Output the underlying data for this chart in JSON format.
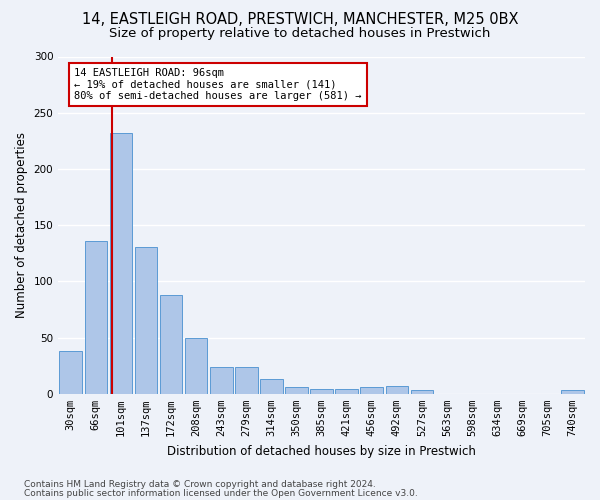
{
  "title_line1": "14, EASTLEIGH ROAD, PRESTWICH, MANCHESTER, M25 0BX",
  "title_line2": "Size of property relative to detached houses in Prestwich",
  "xlabel": "Distribution of detached houses by size in Prestwich",
  "ylabel": "Number of detached properties",
  "footer_line1": "Contains HM Land Registry data © Crown copyright and database right 2024.",
  "footer_line2": "Contains public sector information licensed under the Open Government Licence v3.0.",
  "bar_labels": [
    "30sqm",
    "66sqm",
    "101sqm",
    "137sqm",
    "172sqm",
    "208sqm",
    "243sqm",
    "279sqm",
    "314sqm",
    "350sqm",
    "385sqm",
    "421sqm",
    "456sqm",
    "492sqm",
    "527sqm",
    "563sqm",
    "598sqm",
    "634sqm",
    "669sqm",
    "705sqm",
    "740sqm"
  ],
  "bar_values": [
    38,
    136,
    232,
    131,
    88,
    50,
    24,
    24,
    13,
    6,
    4,
    4,
    6,
    7,
    3,
    0,
    0,
    0,
    0,
    0,
    3
  ],
  "bar_color": "#aec6e8",
  "bar_edge_color": "#5b9bd5",
  "annotation_box_text": "14 EASTLEIGH ROAD: 96sqm\n← 19% of detached houses are smaller (141)\n80% of semi-detached houses are larger (581) →",
  "annotation_box_color": "#ffffff",
  "annotation_box_edge_color": "#cc0000",
  "vline_x": 1.65,
  "vline_color": "#cc0000",
  "ylim": [
    0,
    300
  ],
  "yticks": [
    0,
    50,
    100,
    150,
    200,
    250,
    300
  ],
  "background_color": "#eef2f9",
  "grid_color": "#ffffff",
  "title_fontsize": 10.5,
  "subtitle_fontsize": 9.5,
  "axis_label_fontsize": 8.5,
  "tick_fontsize": 7.5,
  "footer_fontsize": 6.5
}
